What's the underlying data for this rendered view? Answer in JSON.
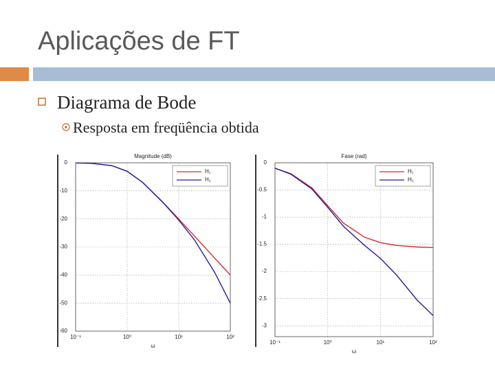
{
  "slide": {
    "title": "Aplicações de FT",
    "bullet": "Diagrama de Bode",
    "sub_bullet": "Resposta em freqüência obtida"
  },
  "chart_data": [
    {
      "type": "line",
      "title": "Magnitude (dB)",
      "x_label": "ω",
      "x_log": true,
      "grid": true,
      "legend": "upper right",
      "x": [
        0.1,
        0.2,
        0.5,
        1,
        2,
        5,
        10,
        20,
        50,
        100
      ],
      "series": [
        {
          "name": "H₁",
          "color": "#d62728",
          "values": [
            -0.04,
            -0.17,
            -0.97,
            -3.01,
            -6.99,
            -14.15,
            -20.04,
            -26.03,
            -33.98,
            -40.0
          ]
        },
        {
          "name": "H₂",
          "color": "#1f1f9e",
          "values": [
            -0.04,
            -0.17,
            -0.97,
            -3.01,
            -7.01,
            -14.25,
            -20.41,
            -27.37,
            -39.1,
            -50.0
          ]
        }
      ],
      "xlim": [
        0.1,
        100
      ],
      "xticks": [
        {
          "value": 0.1,
          "label": "10⁻¹"
        },
        {
          "value": 1,
          "label": "10⁰"
        },
        {
          "value": 10,
          "label": "10¹"
        },
        {
          "value": 100,
          "label": "10²"
        }
      ],
      "ylim": [
        -60,
        0
      ],
      "yticks": [
        0,
        -10,
        -20,
        -30,
        -40,
        -50,
        -60
      ]
    },
    {
      "type": "line",
      "title": "Fase (rad)",
      "x_label": "ω",
      "x_log": true,
      "grid": true,
      "legend": "upper right",
      "x": [
        0.1,
        0.2,
        0.5,
        1,
        2,
        5,
        10,
        20,
        50,
        100
      ],
      "series": [
        {
          "name": "H₁",
          "color": "#d62728",
          "values": [
            -0.1,
            -0.2,
            -0.46,
            -0.79,
            -1.11,
            -1.37,
            -1.47,
            -1.52,
            -1.55,
            -1.56
          ]
        },
        {
          "name": "H₂",
          "color": "#1f1f9e",
          "values": [
            -0.1,
            -0.21,
            -0.48,
            -0.82,
            -1.17,
            -1.52,
            -1.76,
            -2.06,
            -2.53,
            -2.81
          ]
        }
      ],
      "xlim": [
        0.1,
        100
      ],
      "xticks": [
        {
          "value": 0.1,
          "label": "10⁻¹"
        },
        {
          "value": 1,
          "label": "10⁰"
        },
        {
          "value": 10,
          "label": "10¹"
        },
        {
          "value": 100,
          "label": "10²"
        }
      ],
      "ylim": [
        -3.2,
        0
      ],
      "yticks": [
        0,
        -0.5,
        -1,
        -1.5,
        -2,
        -2.5,
        -3
      ]
    }
  ]
}
